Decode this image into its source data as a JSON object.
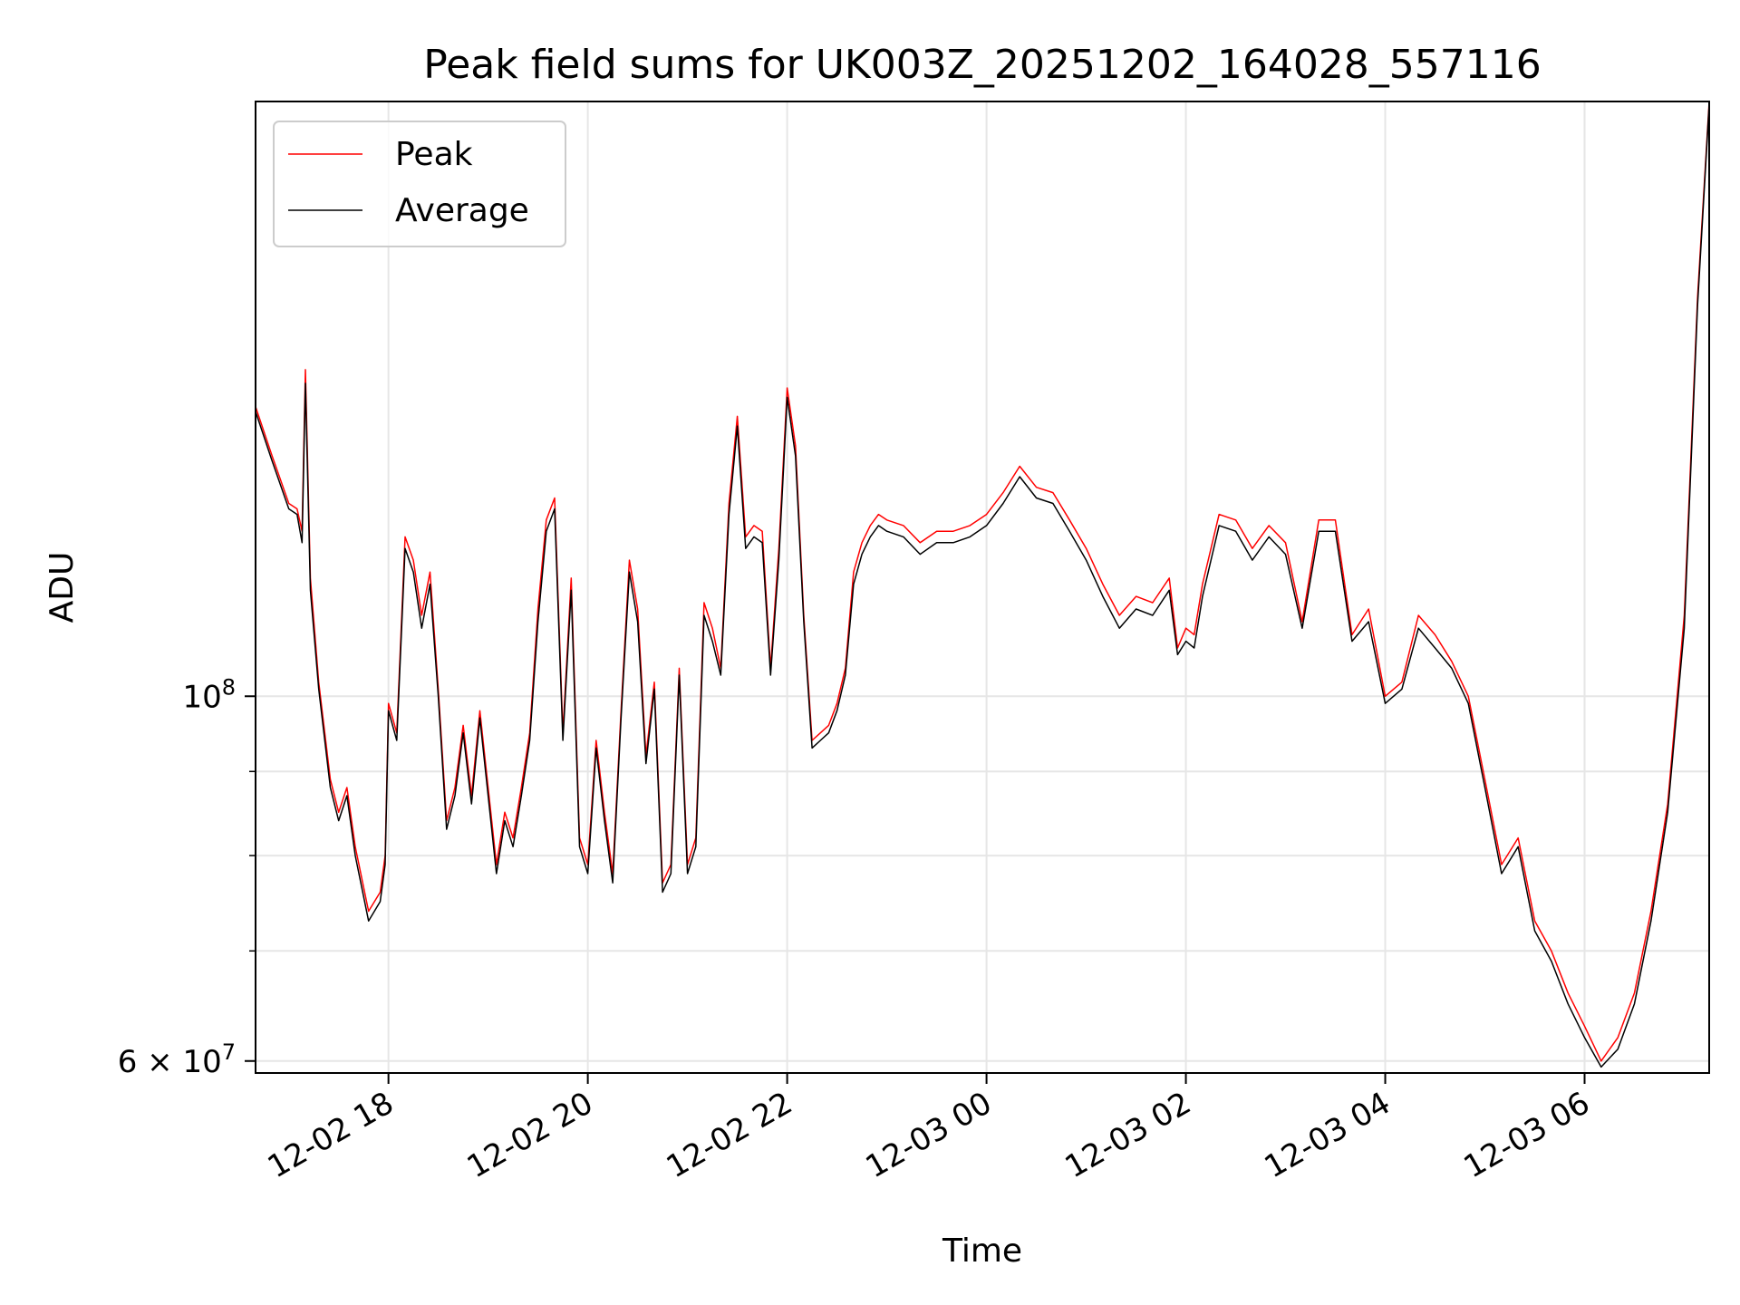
{
  "chart_data": {
    "type": "line",
    "title": "Peak field sums for UK003Z_20251202_164028_557116",
    "xlabel": "Time",
    "ylabel": "ADU",
    "y_scale": "log",
    "ylim": [
      59000000,
      230000000
    ],
    "xlim": [
      "2025-12-02 16:40",
      "2025-12-03 07:15"
    ],
    "x_ticks": [
      "2025-12-02 18:00",
      "2025-12-02 20:00",
      "2025-12-02 22:00",
      "2025-12-03 00:00",
      "2025-12-03 02:00",
      "2025-12-03 04:00",
      "2025-12-03 06:00"
    ],
    "x_tick_labels": [
      "12-02 18",
      "12-02 20",
      "12-02 22",
      "12-03 00",
      "12-03 02",
      "12-03 04",
      "12-03 06"
    ],
    "y_tick_labels": [
      {
        "value": 100000000,
        "base": "10",
        "exp": "8"
      },
      {
        "value": 60000000,
        "mant": "6",
        "base": "10",
        "exp": "7"
      }
    ],
    "y_minor_ticks": [
      70000000,
      80000000,
      90000000
    ],
    "grid": true,
    "legend_position": "top-left",
    "series": [
      {
        "name": "Peak",
        "color": "#ff0000",
        "x": [
          "2025-12-02 16:40",
          "2025-12-02 16:50",
          "2025-12-02 17:00",
          "2025-12-02 17:05",
          "2025-12-02 17:08",
          "2025-12-02 17:10",
          "2025-12-02 17:13",
          "2025-12-02 17:18",
          "2025-12-02 17:25",
          "2025-12-02 17:30",
          "2025-12-02 17:35",
          "2025-12-02 17:40",
          "2025-12-02 17:48",
          "2025-12-02 17:55",
          "2025-12-02 17:58",
          "2025-12-02 18:00",
          "2025-12-02 18:05",
          "2025-12-02 18:10",
          "2025-12-02 18:15",
          "2025-12-02 18:20",
          "2025-12-02 18:25",
          "2025-12-02 18:30",
          "2025-12-02 18:35",
          "2025-12-02 18:40",
          "2025-12-02 18:45",
          "2025-12-02 18:50",
          "2025-12-02 18:55",
          "2025-12-02 19:05",
          "2025-12-02 19:10",
          "2025-12-02 19:15",
          "2025-12-02 19:20",
          "2025-12-02 19:25",
          "2025-12-02 19:30",
          "2025-12-02 19:35",
          "2025-12-02 19:40",
          "2025-12-02 19:45",
          "2025-12-02 19:50",
          "2025-12-02 19:55",
          "2025-12-02 20:00",
          "2025-12-02 20:05",
          "2025-12-02 20:10",
          "2025-12-02 20:15",
          "2025-12-02 20:20",
          "2025-12-02 20:25",
          "2025-12-02 20:30",
          "2025-12-02 20:35",
          "2025-12-02 20:40",
          "2025-12-02 20:45",
          "2025-12-02 20:50",
          "2025-12-02 20:55",
          "2025-12-02 21:00",
          "2025-12-02 21:05",
          "2025-12-02 21:10",
          "2025-12-02 21:15",
          "2025-12-02 21:20",
          "2025-12-02 21:25",
          "2025-12-02 21:30",
          "2025-12-02 21:35",
          "2025-12-02 21:40",
          "2025-12-02 21:45",
          "2025-12-02 21:50",
          "2025-12-02 21:55",
          "2025-12-02 22:00",
          "2025-12-02 22:05",
          "2025-12-02 22:10",
          "2025-12-02 22:15",
          "2025-12-02 22:20",
          "2025-12-02 22:25",
          "2025-12-02 22:30",
          "2025-12-02 22:35",
          "2025-12-02 22:40",
          "2025-12-02 22:45",
          "2025-12-02 22:50",
          "2025-12-02 22:55",
          "2025-12-02 23:00",
          "2025-12-02 23:10",
          "2025-12-02 23:20",
          "2025-12-02 23:30",
          "2025-12-02 23:40",
          "2025-12-02 23:50",
          "2025-12-03 00:00",
          "2025-12-03 00:10",
          "2025-12-03 00:20",
          "2025-12-03 00:30",
          "2025-12-03 00:40",
          "2025-12-03 00:50",
          "2025-12-03 01:00",
          "2025-12-03 01:10",
          "2025-12-03 01:20",
          "2025-12-03 01:30",
          "2025-12-03 01:40",
          "2025-12-03 01:50",
          "2025-12-03 01:55",
          "2025-12-03 02:00",
          "2025-12-03 02:05",
          "2025-12-03 02:10",
          "2025-12-03 02:20",
          "2025-12-03 02:30",
          "2025-12-03 02:40",
          "2025-12-03 02:50",
          "2025-12-03 03:00",
          "2025-12-03 03:10",
          "2025-12-03 03:20",
          "2025-12-03 03:30",
          "2025-12-03 03:40",
          "2025-12-03 03:50",
          "2025-12-03 04:00",
          "2025-12-03 04:10",
          "2025-12-03 04:20",
          "2025-12-03 04:30",
          "2025-12-03 04:40",
          "2025-12-03 04:50",
          "2025-12-03 05:00",
          "2025-12-03 05:10",
          "2025-12-03 05:20",
          "2025-12-03 05:30",
          "2025-12-03 05:40",
          "2025-12-03 05:50",
          "2025-12-03 06:00",
          "2025-12-03 06:10",
          "2025-12-03 06:20",
          "2025-12-03 06:30",
          "2025-12-03 06:40",
          "2025-12-03 06:50",
          "2025-12-03 07:00",
          "2025-12-03 07:08",
          "2025-12-03 07:15"
        ],
        "y": [
          150000000,
          140000000,
          131000000,
          130000000,
          126000000,
          158000000,
          118000000,
          102000000,
          89000000,
          85000000,
          88000000,
          81000000,
          74000000,
          76000000,
          80000000,
          99000000,
          95000000,
          125000000,
          121000000,
          112000000,
          119000000,
          101000000,
          84000000,
          88000000,
          96000000,
          87000000,
          98000000,
          79000000,
          85000000,
          82000000,
          88000000,
          95000000,
          113000000,
          128000000,
          132000000,
          95000000,
          118000000,
          82000000,
          79000000,
          94000000,
          85000000,
          78000000,
          98000000,
          121000000,
          113000000,
          92000000,
          102000000,
          77000000,
          79000000,
          104000000,
          79000000,
          82000000,
          114000000,
          110000000,
          104000000,
          131000000,
          148000000,
          125000000,
          127000000,
          126000000,
          104000000,
          123000000,
          154000000,
          142000000,
          112000000,
          94000000,
          95000000,
          96000000,
          99000000,
          104000000,
          119000000,
          124000000,
          127000000,
          129000000,
          128000000,
          127000000,
          124000000,
          126000000,
          126000000,
          127000000,
          129000000,
          133000000,
          138000000,
          134000000,
          133000000,
          128000000,
          123000000,
          117000000,
          112000000,
          115000000,
          114000000,
          118000000,
          107000000,
          110000000,
          109000000,
          117000000,
          129000000,
          128000000,
          123000000,
          127000000,
          124000000,
          111000000,
          128000000,
          128000000,
          109000000,
          113000000,
          100000000,
          102000000,
          112000000,
          109000000,
          105000000,
          100000000,
          89000000,
          79000000,
          82000000,
          73000000,
          70000000,
          66000000,
          63000000,
          60000000,
          62000000,
          66000000,
          74000000,
          86000000,
          112000000,
          175000000,
          230000000
        ]
      },
      {
        "name": "Average",
        "color": "#000000",
        "x": [
          "2025-12-02 16:40",
          "2025-12-02 16:50",
          "2025-12-02 17:00",
          "2025-12-02 17:05",
          "2025-12-02 17:08",
          "2025-12-02 17:10",
          "2025-12-02 17:13",
          "2025-12-02 17:18",
          "2025-12-02 17:25",
          "2025-12-02 17:30",
          "2025-12-02 17:35",
          "2025-12-02 17:40",
          "2025-12-02 17:48",
          "2025-12-02 17:55",
          "2025-12-02 17:58",
          "2025-12-02 18:00",
          "2025-12-02 18:05",
          "2025-12-02 18:10",
          "2025-12-02 18:15",
          "2025-12-02 18:20",
          "2025-12-02 18:25",
          "2025-12-02 18:30",
          "2025-12-02 18:35",
          "2025-12-02 18:40",
          "2025-12-02 18:45",
          "2025-12-02 18:50",
          "2025-12-02 18:55",
          "2025-12-02 19:05",
          "2025-12-02 19:10",
          "2025-12-02 19:15",
          "2025-12-02 19:20",
          "2025-12-02 19:25",
          "2025-12-02 19:30",
          "2025-12-02 19:35",
          "2025-12-02 19:40",
          "2025-12-02 19:45",
          "2025-12-02 19:50",
          "2025-12-02 19:55",
          "2025-12-02 20:00",
          "2025-12-02 20:05",
          "2025-12-02 20:10",
          "2025-12-02 20:15",
          "2025-12-02 20:20",
          "2025-12-02 20:25",
          "2025-12-02 20:30",
          "2025-12-02 20:35",
          "2025-12-02 20:40",
          "2025-12-02 20:45",
          "2025-12-02 20:50",
          "2025-12-02 20:55",
          "2025-12-02 21:00",
          "2025-12-02 21:05",
          "2025-12-02 21:10",
          "2025-12-02 21:15",
          "2025-12-02 21:20",
          "2025-12-02 21:25",
          "2025-12-02 21:30",
          "2025-12-02 21:35",
          "2025-12-02 21:40",
          "2025-12-02 21:45",
          "2025-12-02 21:50",
          "2025-12-02 21:55",
          "2025-12-02 22:00",
          "2025-12-02 22:05",
          "2025-12-02 22:10",
          "2025-12-02 22:15",
          "2025-12-02 22:20",
          "2025-12-02 22:25",
          "2025-12-02 22:30",
          "2025-12-02 22:35",
          "2025-12-02 22:40",
          "2025-12-02 22:45",
          "2025-12-02 22:50",
          "2025-12-02 22:55",
          "2025-12-02 23:00",
          "2025-12-02 23:10",
          "2025-12-02 23:20",
          "2025-12-02 23:30",
          "2025-12-02 23:40",
          "2025-12-02 23:50",
          "2025-12-03 00:00",
          "2025-12-03 00:10",
          "2025-12-03 00:20",
          "2025-12-03 00:30",
          "2025-12-03 00:40",
          "2025-12-03 00:50",
          "2025-12-03 01:00",
          "2025-12-03 01:10",
          "2025-12-03 01:20",
          "2025-12-03 01:30",
          "2025-12-03 01:40",
          "2025-12-03 01:50",
          "2025-12-03 01:55",
          "2025-12-03 02:00",
          "2025-12-03 02:05",
          "2025-12-03 02:10",
          "2025-12-03 02:20",
          "2025-12-03 02:30",
          "2025-12-03 02:40",
          "2025-12-03 02:50",
          "2025-12-03 03:00",
          "2025-12-03 03:10",
          "2025-12-03 03:20",
          "2025-12-03 03:30",
          "2025-12-03 03:40",
          "2025-12-03 03:50",
          "2025-12-03 04:00",
          "2025-12-03 04:10",
          "2025-12-03 04:20",
          "2025-12-03 04:30",
          "2025-12-03 04:40",
          "2025-12-03 04:50",
          "2025-12-03 05:00",
          "2025-12-03 05:10",
          "2025-12-03 05:20",
          "2025-12-03 05:30",
          "2025-12-03 05:40",
          "2025-12-03 05:50",
          "2025-12-03 06:00",
          "2025-12-03 06:10",
          "2025-12-03 06:20",
          "2025-12-03 06:30",
          "2025-12-03 06:40",
          "2025-12-03 06:50",
          "2025-12-03 07:00",
          "2025-12-03 07:08",
          "2025-12-03 07:15"
        ],
        "y": [
          149000000,
          139000000,
          130000000,
          129000000,
          124000000,
          155000000,
          116000000,
          101000000,
          88000000,
          84000000,
          87000000,
          80000000,
          73000000,
          75000000,
          79000000,
          98000000,
          94000000,
          123000000,
          119000000,
          110000000,
          117000000,
          100000000,
          83000000,
          87000000,
          95000000,
          86000000,
          97000000,
          78000000,
          84000000,
          81000000,
          87000000,
          94000000,
          111000000,
          126000000,
          130000000,
          94000000,
          116000000,
          81000000,
          78000000,
          93000000,
          84000000,
          77000000,
          97000000,
          119000000,
          111000000,
          91000000,
          101000000,
          76000000,
          78000000,
          103000000,
          78000000,
          81000000,
          112000000,
          108000000,
          103000000,
          129000000,
          146000000,
          123000000,
          125000000,
          124000000,
          103000000,
          121000000,
          152000000,
          140000000,
          111000000,
          93000000,
          94000000,
          95000000,
          98000000,
          103000000,
          117000000,
          122000000,
          125000000,
          127000000,
          126000000,
          125000000,
          122000000,
          124000000,
          124000000,
          125000000,
          127000000,
          131000000,
          136000000,
          132000000,
          131000000,
          126000000,
          121000000,
          115000000,
          110000000,
          113000000,
          112000000,
          116000000,
          106000000,
          108000000,
          107000000,
          115000000,
          127000000,
          126000000,
          121000000,
          125000000,
          122000000,
          110000000,
          126000000,
          126000000,
          108000000,
          111000000,
          99000000,
          101000000,
          110000000,
          107000000,
          104000000,
          99000000,
          88000000,
          78000000,
          81000000,
          72000000,
          69000000,
          65000000,
          62000000,
          59500000,
          61000000,
          65000000,
          73000000,
          85000000,
          110000000,
          173000000,
          229000000
        ]
      }
    ]
  }
}
